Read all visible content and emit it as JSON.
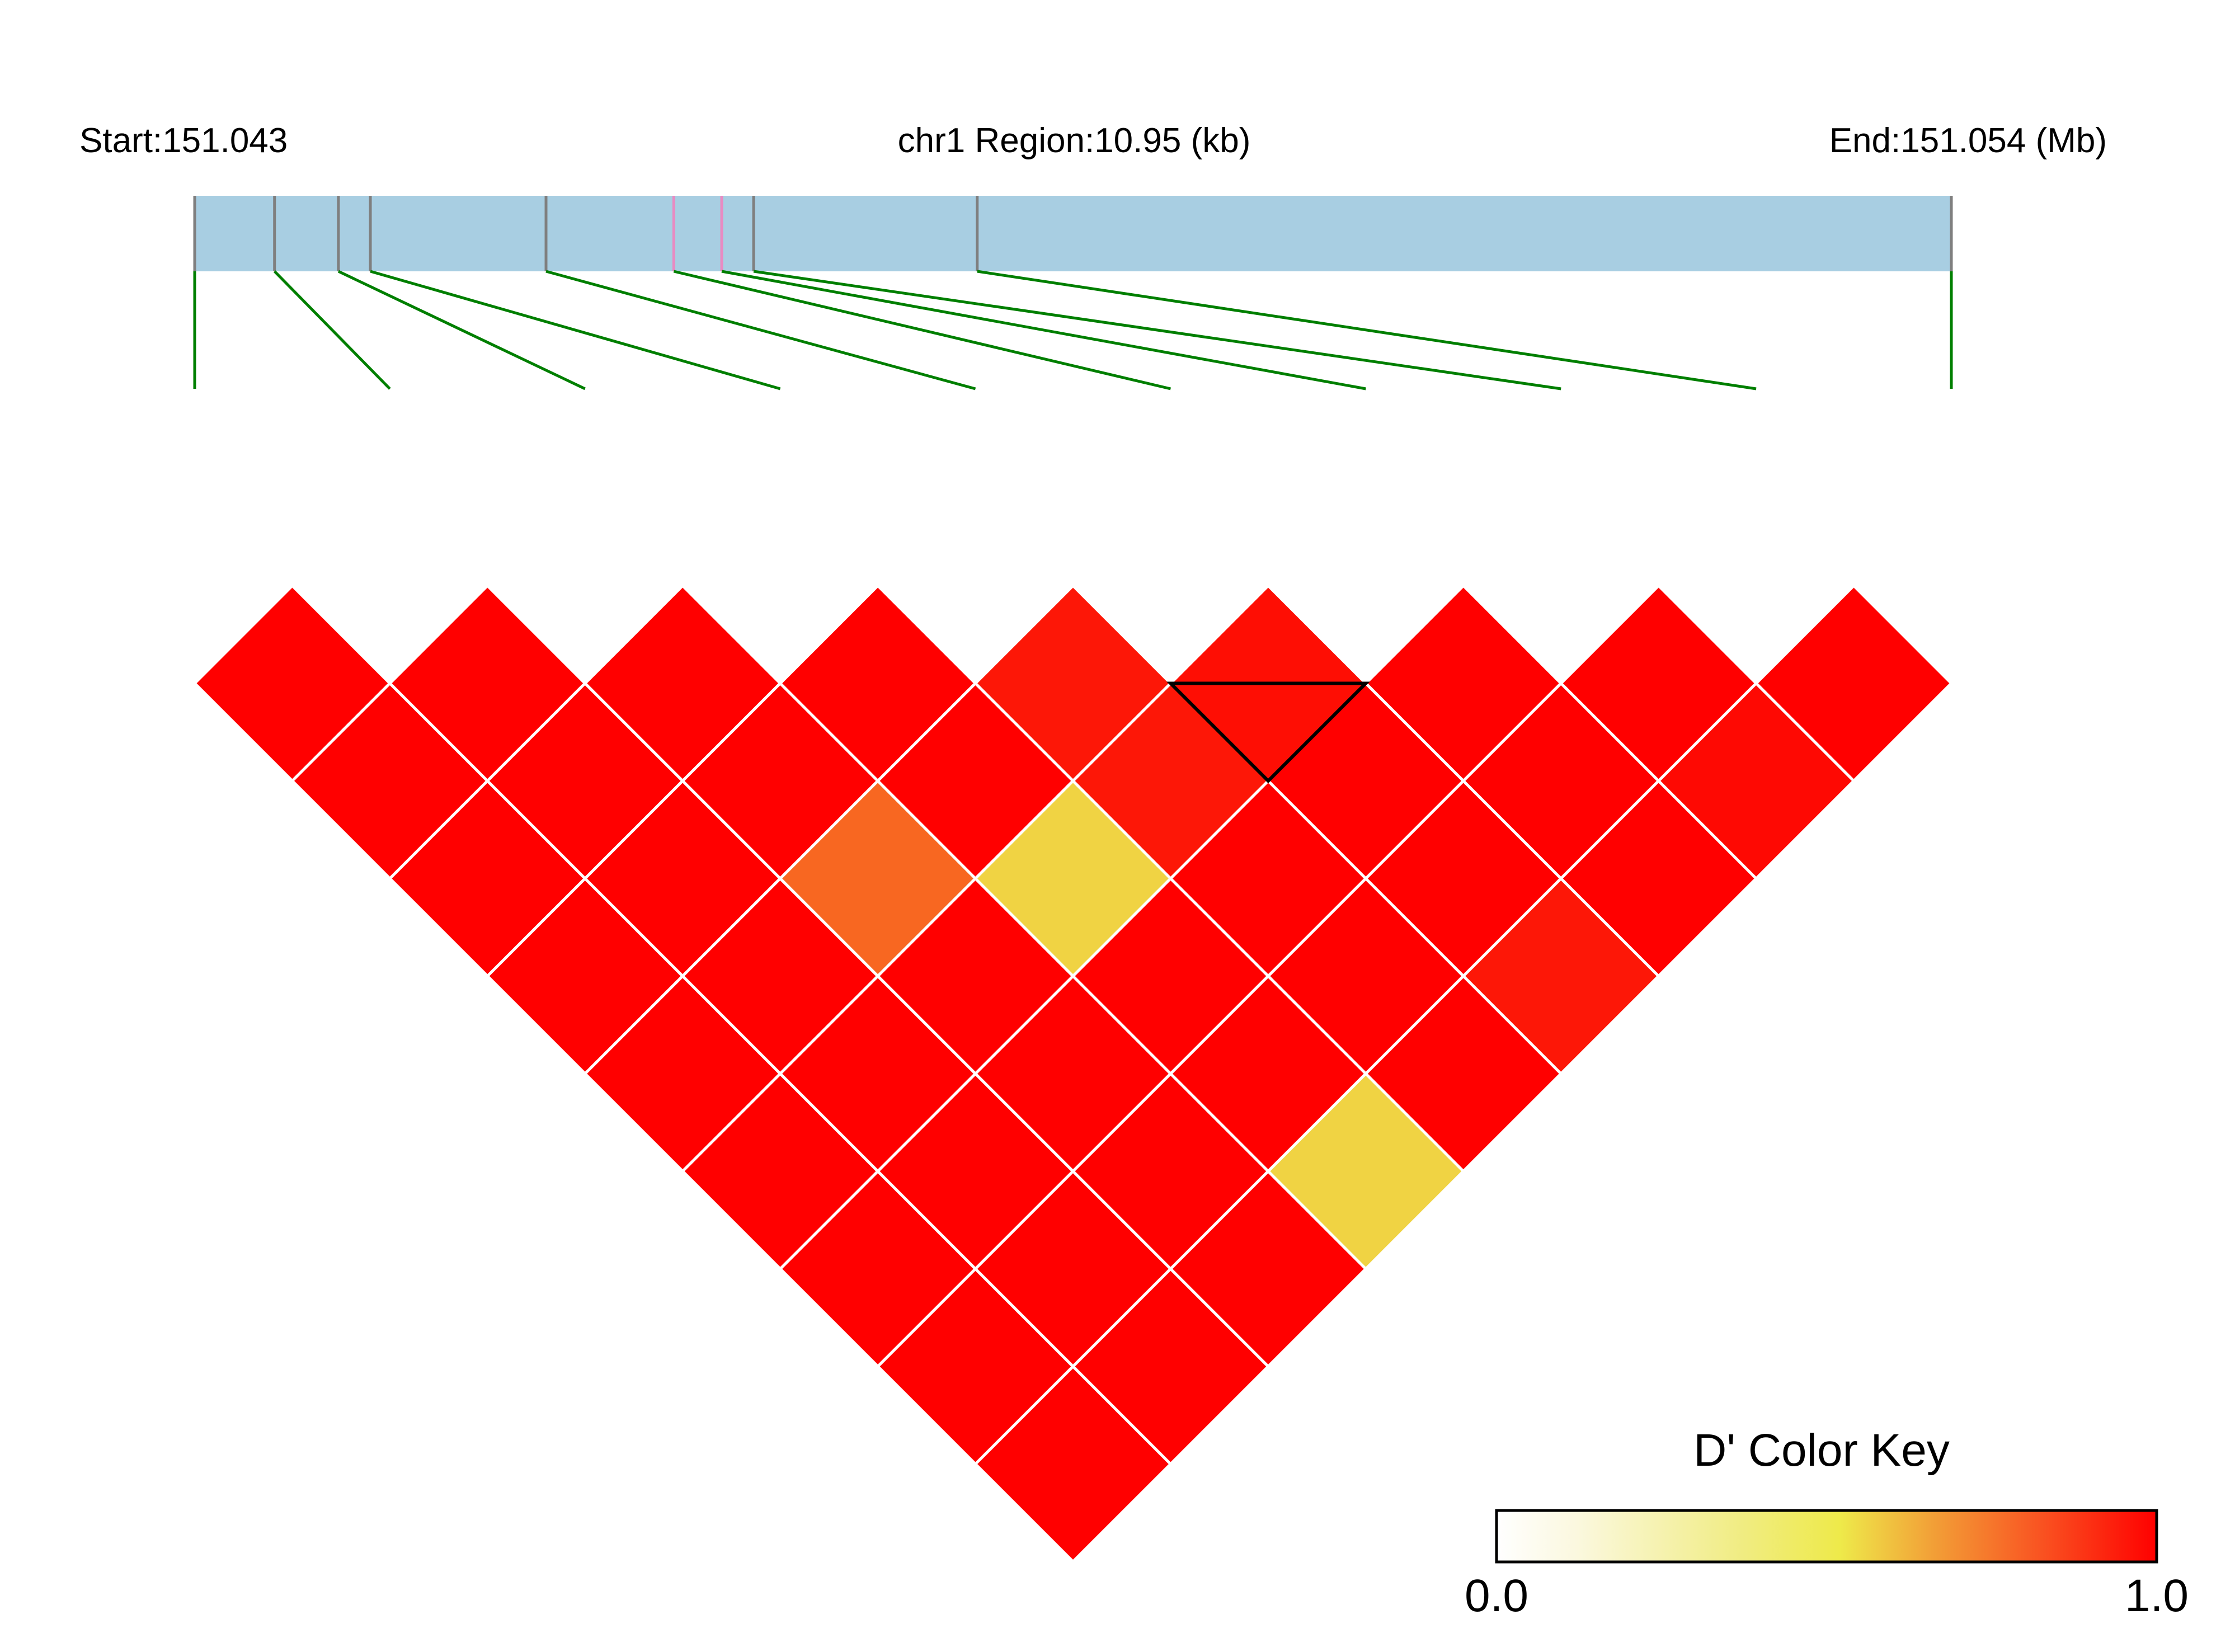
{
  "chart_data": {
    "type": "heatmap",
    "title": "",
    "header": {
      "start_label": "Start:151.043",
      "region_label": "chr1 Region:10.95 (kb)",
      "end_label": "End:151.054 (Mb)"
    },
    "region": {
      "chrom": "chr1",
      "start_mb": 151.043,
      "end_mb": 151.054,
      "length_kb": 10.95
    },
    "snp_positions_mb": [
      151.043,
      151.0435,
      151.0439,
      151.0441,
      151.0452,
      151.046,
      151.0463,
      151.0465,
      151.0479,
      151.054
    ],
    "highlighted_snps": [
      5,
      6
    ],
    "ld_metric": "D'",
    "ld_matrix": [
      [
        null,
        1.0,
        1.0,
        1.0,
        1.0,
        1.0,
        1.0,
        1.0,
        1.0,
        1.0
      ],
      [
        null,
        null,
        1.0,
        1.0,
        1.0,
        1.0,
        1.0,
        1.0,
        1.0,
        1.0
      ],
      [
        null,
        null,
        null,
        1.0,
        1.0,
        0.78,
        1.0,
        1.0,
        1.0,
        1.0
      ],
      [
        null,
        null,
        null,
        null,
        1.0,
        1.0,
        0.55,
        1.0,
        1.0,
        0.55
      ],
      [
        null,
        null,
        null,
        null,
        null,
        0.95,
        0.95,
        1.0,
        1.0,
        1.0
      ],
      [
        null,
        null,
        null,
        null,
        null,
        null,
        0.97,
        1.0,
        1.0,
        0.95
      ],
      [
        null,
        null,
        null,
        null,
        null,
        null,
        null,
        1.0,
        1.0,
        1.0
      ],
      [
        null,
        null,
        null,
        null,
        null,
        null,
        null,
        null,
        1.0,
        0.98
      ],
      [
        null,
        null,
        null,
        null,
        null,
        null,
        null,
        null,
        null,
        1.0
      ]
    ],
    "block": {
      "snps": [
        5,
        6
      ]
    },
    "color_key": {
      "title": "D' Color Key",
      "min_label": "0.0",
      "max_label": "1.0",
      "range": [
        0,
        1
      ],
      "low_color": "#ffffff",
      "mid_color": "#eeea4a",
      "high_color": "#ff0000"
    },
    "colors": {
      "gene_bar": "#a8cee2",
      "snp_tick": "#7f7f7f",
      "highlight_tick": "#e88bc2",
      "connector": "#007f00",
      "cell_border": "#ffffff",
      "block_outline": "#000000"
    }
  }
}
